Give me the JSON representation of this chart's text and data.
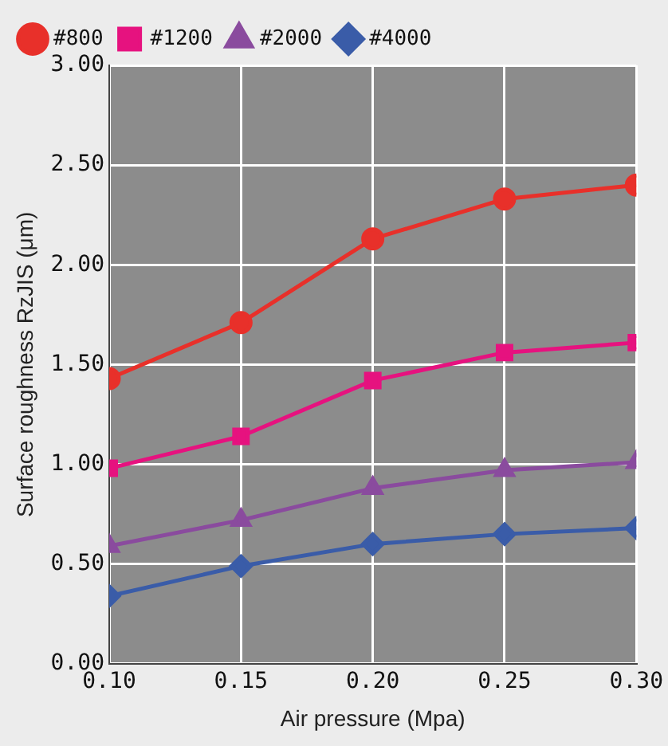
{
  "chart_data": {
    "type": "line",
    "xlabel": "Air pressure (Mpa)",
    "ylabel": "Surface roughness RzJIS (μm)",
    "x": [
      0.1,
      0.15,
      0.2,
      0.25,
      0.3
    ],
    "series": [
      {
        "name": "#800",
        "color": "#e8302a",
        "marker": "circle",
        "values": [
          1.43,
          1.71,
          2.13,
          2.33,
          2.4
        ]
      },
      {
        "name": "#1200",
        "color": "#e6127f",
        "marker": "square",
        "values": [
          0.98,
          1.14,
          1.42,
          1.56,
          1.61
        ]
      },
      {
        "name": "#2000",
        "color": "#8a4b9e",
        "marker": "triangle",
        "values": [
          0.59,
          0.72,
          0.88,
          0.97,
          1.01
        ]
      },
      {
        "name": "#4000",
        "color": "#3a5ca8",
        "marker": "diamond",
        "values": [
          0.34,
          0.49,
          0.6,
          0.65,
          0.68
        ]
      }
    ],
    "xlim": [
      0.1,
      0.3
    ],
    "xticks": [
      {
        "value": 0.1,
        "label": "0.10"
      },
      {
        "value": 0.15,
        "label": "0.15"
      },
      {
        "value": 0.2,
        "label": "0.20"
      },
      {
        "value": 0.25,
        "label": "0.25"
      },
      {
        "value": 0.3,
        "label": "0.30"
      }
    ],
    "ylim": [
      0,
      3
    ],
    "yticks": [
      {
        "value": 0,
        "label": "0.00"
      },
      {
        "value": 0.5,
        "label": "0.50"
      },
      {
        "value": 1,
        "label": "1.00"
      },
      {
        "value": 1.5,
        "label": "1.50"
      },
      {
        "value": 2,
        "label": "2.00"
      },
      {
        "value": 2.5,
        "label": "2.50"
      },
      {
        "value": 3,
        "label": "3.00"
      }
    ],
    "grid": true,
    "legend": "top left",
    "line_style": "solid"
  }
}
